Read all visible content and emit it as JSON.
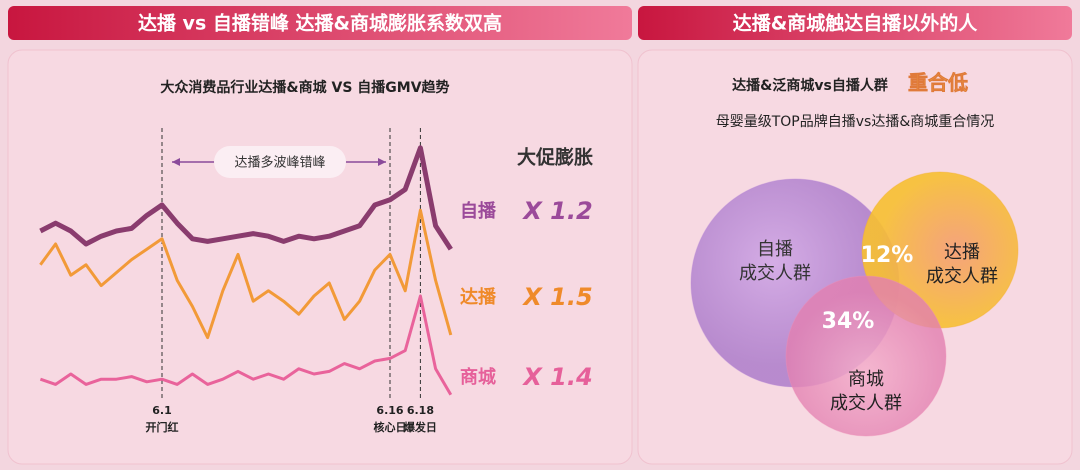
{
  "headers": [
    "达播 vs 自播错峰  达播&商城膨胀系数双高",
    "达播&商城触达自播以外的人"
  ],
  "chart_data": [
    {
      "type": "line",
      "title": "大众消费品行业达播&商城 VS 自播GMV趋势",
      "annotation": "达播多波峰错峰",
      "legend_title": "大促膨胀",
      "categories": [
        null,
        null,
        null,
        null,
        null,
        null,
        null,
        null,
        "6.1",
        null,
        null,
        null,
        null,
        null,
        null,
        null,
        null,
        null,
        null,
        null,
        null,
        null,
        null,
        "6.16",
        null,
        "6.18",
        null,
        null
      ],
      "category_notes": [
        null,
        null,
        null,
        null,
        null,
        null,
        null,
        null,
        "开门红",
        null,
        null,
        null,
        null,
        null,
        null,
        null,
        null,
        null,
        null,
        null,
        null,
        null,
        null,
        "核心日",
        null,
        "爆发日",
        null,
        null
      ],
      "ylim": [
        0,
        100
      ],
      "series": [
        {
          "name": "自播",
          "color": "#8a3c6e",
          "label_color": "#9b4a9a",
          "expansion": "X 1.2",
          "values": [
            65,
            68,
            65,
            60,
            63,
            65,
            66,
            71,
            75,
            68,
            62,
            61,
            62,
            63,
            64,
            63,
            61,
            63,
            62,
            63,
            65,
            67,
            75,
            77,
            81,
            97,
            67,
            58
          ]
        },
        {
          "name": "达播",
          "color": "#f29a38",
          "label_color": "#ef8a2a",
          "expansion": "X 1.5",
          "values": [
            52,
            60,
            48,
            52,
            44,
            49,
            54,
            58,
            62,
            46,
            36,
            24,
            42,
            56,
            38,
            42,
            38,
            33,
            40,
            45,
            31,
            38,
            50,
            56,
            42,
            73,
            46,
            25
          ]
        },
        {
          "name": "商城",
          "color": "#e9639b",
          "label_color": "#e6609a",
          "expansion": "X 1.4",
          "values": [
            8,
            6,
            10,
            6,
            8,
            8,
            9,
            7,
            8,
            6,
            10,
            6,
            8,
            11,
            8,
            10,
            8,
            12,
            10,
            11,
            14,
            12,
            15,
            16,
            19,
            40,
            12,
            2
          ]
        }
      ]
    },
    {
      "type": "venn",
      "title": "达播&泛商城vs自播人群",
      "title_highlight": "重合低",
      "subtitle": "母婴量级TOP品牌自播vs达播&商城重合情况",
      "sets": [
        {
          "label": [
            "自播",
            "成交人群"
          ],
          "color": "#b98ad8"
        },
        {
          "label": [
            "达播",
            "成交人群"
          ],
          "color": "#f6b02c"
        },
        {
          "label": [
            "商城",
            "成交人群"
          ],
          "color": "#ee8fb6"
        }
      ],
      "overlaps": {
        "values": [
          12,
          34
        ],
        "value_labels": [
          "12%",
          "34%"
        ]
      }
    }
  ]
}
